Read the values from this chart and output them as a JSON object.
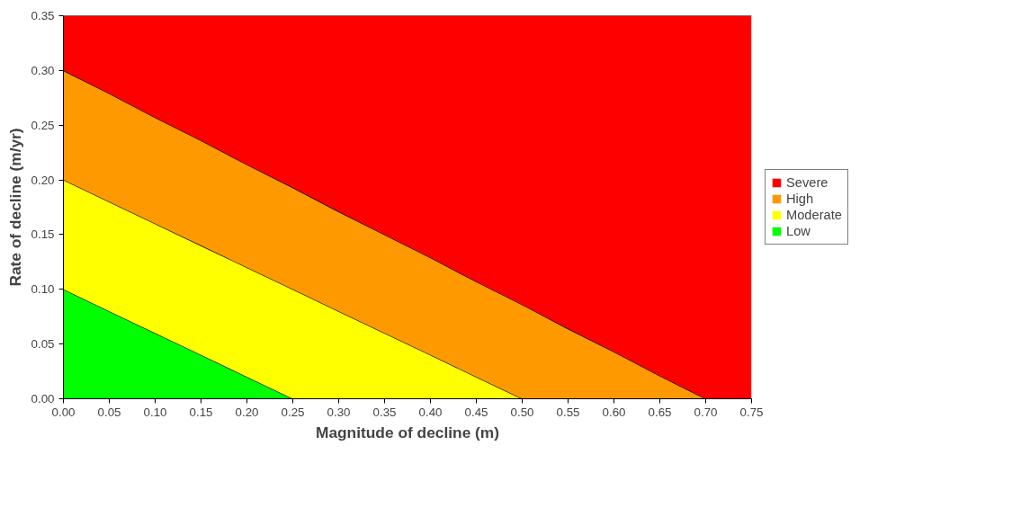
{
  "chart_data": {
    "type": "area",
    "stacked": true,
    "xlabel": "Magnitude of decline (m)",
    "ylabel": "Rate of decline (m/yr)",
    "x": [
      0,
      0.05,
      0.1,
      0.15,
      0.2,
      0.25,
      0.3,
      0.35,
      0.4,
      0.45,
      0.5,
      0.55,
      0.6,
      0.65,
      0.7,
      0.75
    ],
    "series": [
      {
        "name": "Low",
        "color": "#00ff00",
        "values": [
          0.1,
          0.08,
          0.06,
          0.04,
          0.02,
          0,
          0,
          0,
          0,
          0,
          0,
          0,
          0,
          0,
          0,
          0
        ]
      },
      {
        "name": "Moderate",
        "color": "#ffff00",
        "values": [
          0.1,
          0.1,
          0.1,
          0.1,
          0.1,
          0.1,
          0.08,
          0.06,
          0.04,
          0.02,
          0,
          0,
          0,
          0,
          0,
          0
        ]
      },
      {
        "name": "High",
        "color": "#ff9900",
        "values": [
          0.1,
          0.099,
          0.097,
          0.096,
          0.094,
          0.093,
          0.091,
          0.09,
          0.089,
          0.087,
          0.086,
          0.064,
          0.043,
          0.021,
          0,
          0
        ]
      },
      {
        "name": "Severe",
        "color": "#ff0000",
        "values": [
          0.05,
          0.071,
          0.093,
          0.114,
          0.136,
          0.157,
          0.179,
          0.2,
          0.221,
          0.243,
          0.264,
          0.286,
          0.307,
          0.329,
          0.35,
          0.35
        ]
      }
    ],
    "xlim": [
      0,
      0.75
    ],
    "ylim": [
      0,
      0.35
    ],
    "xticks": [
      {
        "value": 0,
        "label": "0.00"
      },
      {
        "value": 0.05,
        "label": "0.05"
      },
      {
        "value": 0.1,
        "label": "0.10"
      },
      {
        "value": 0.15,
        "label": "0.15"
      },
      {
        "value": 0.2,
        "label": "0.20"
      },
      {
        "value": 0.25,
        "label": "0.25"
      },
      {
        "value": 0.3,
        "label": "0.30"
      },
      {
        "value": 0.35,
        "label": "0.35"
      },
      {
        "value": 0.4,
        "label": "0.40"
      },
      {
        "value": 0.45,
        "label": "0.45"
      },
      {
        "value": 0.5,
        "label": "0.50"
      },
      {
        "value": 0.55,
        "label": "0.55"
      },
      {
        "value": 0.6,
        "label": "0.60"
      },
      {
        "value": 0.65,
        "label": "0.65"
      },
      {
        "value": 0.7,
        "label": "0.70"
      },
      {
        "value": 0.75,
        "label": "0.75"
      }
    ],
    "yticks": [
      {
        "value": 0,
        "label": "0.00"
      },
      {
        "value": 0.05,
        "label": "0.05"
      },
      {
        "value": 0.1,
        "label": "0.10"
      },
      {
        "value": 0.15,
        "label": "0.15"
      },
      {
        "value": 0.2,
        "label": "0.20"
      },
      {
        "value": 0.25,
        "label": "0.25"
      },
      {
        "value": 0.3,
        "label": "0.30"
      },
      {
        "value": 0.35,
        "label": "0.35"
      }
    ],
    "legend": "right"
  }
}
